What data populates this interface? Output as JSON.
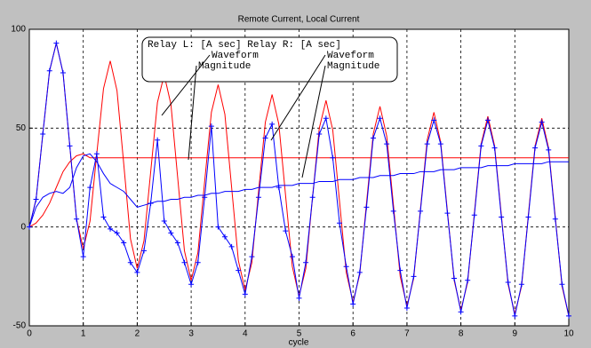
{
  "chart_data": {
    "type": "line",
    "title": "Remote Current, Local Current",
    "x_label": "cycle",
    "legend_title": "Relay L: [A sec] Relay R: [A sec]",
    "xlim": [
      0,
      10
    ],
    "xticks": [
      0,
      1,
      2,
      3,
      4,
      5,
      6,
      7,
      8,
      9,
      10
    ],
    "ylim": [
      -50,
      100
    ],
    "yticks": [
      -50,
      0,
      50,
      100
    ],
    "grid": true,
    "x": [
      0,
      0.125,
      0.25,
      0.375,
      0.5,
      0.625,
      0.75,
      0.875,
      1,
      1.125,
      1.25,
      1.375,
      1.5,
      1.625,
      1.75,
      1.875,
      2,
      2.125,
      2.25,
      2.375,
      2.5,
      2.625,
      2.75,
      2.875,
      3,
      3.125,
      3.25,
      3.375,
      3.5,
      3.625,
      3.75,
      3.875,
      4,
      4.125,
      4.25,
      4.375,
      4.5,
      4.625,
      4.75,
      4.875,
      5,
      5.125,
      5.25,
      5.375,
      5.5,
      5.625,
      5.75,
      5.875,
      6,
      6.125,
      6.25,
      6.375,
      6.5,
      6.625,
      6.75,
      6.875,
      7,
      7.125,
      7.25,
      7.375,
      7.5,
      7.625,
      7.75,
      7.875,
      8,
      8.125,
      8.25,
      8.375,
      8.5,
      8.625,
      8.75,
      8.875,
      9,
      9.125,
      9.25,
      9.375,
      9.5,
      9.625,
      9.75,
      9.875,
      10
    ],
    "series": [
      {
        "name": "Waveform",
        "color": "#ff0000",
        "values": [
          0,
          14,
          47,
          79,
          93,
          78,
          41,
          4,
          -11,
          3,
          37,
          70,
          84,
          69,
          32,
          -6,
          -21,
          -7,
          28,
          63,
          77,
          62,
          25,
          -12,
          -27,
          -13,
          23,
          58,
          72,
          57,
          20,
          -17,
          -32,
          -18,
          18,
          53,
          67,
          52,
          16,
          -20,
          -35,
          -21,
          15,
          50,
          64,
          49,
          13,
          -23,
          -38,
          -24,
          12,
          47,
          61,
          46,
          11,
          -25,
          -40,
          -26,
          9,
          44,
          58,
          43,
          8,
          -27,
          -42,
          -28,
          7,
          42,
          56,
          41,
          6,
          -29,
          -44,
          -30,
          6,
          41,
          55,
          40,
          5,
          -30,
          -45
        ]
      },
      {
        "name": "Magnitude",
        "color": "#ff0000",
        "values": [
          0,
          2,
          6,
          12,
          20,
          28,
          33,
          36,
          37,
          35,
          35,
          35,
          35,
          35,
          35,
          35,
          35,
          35,
          35,
          35,
          35,
          35,
          35,
          35,
          35,
          35,
          35,
          35,
          35,
          35,
          35,
          35,
          35,
          35,
          35,
          35,
          35,
          35,
          35,
          35,
          35,
          35,
          35,
          35,
          35,
          35,
          35,
          35,
          35,
          35,
          35,
          35,
          35,
          35,
          35,
          35,
          35,
          35,
          35,
          35,
          35,
          35,
          35,
          35,
          35,
          35,
          35,
          35,
          35,
          35,
          35,
          35,
          35,
          35,
          35,
          35,
          35,
          35,
          35,
          35,
          35
        ]
      },
      {
        "name": "Waveform",
        "color": "#0000ff",
        "marker": "plus",
        "values": [
          0,
          14,
          47,
          79,
          93,
          78,
          41,
          4,
          -15,
          20,
          37,
          5,
          -1,
          -3,
          -8,
          -18,
          -23,
          -12,
          12,
          44,
          3,
          -3,
          -8,
          -18,
          -29,
          -18,
          15,
          51,
          0,
          -5,
          -10,
          -22,
          -34,
          -15,
          15,
          45,
          52,
          20,
          -2,
          -15,
          -36,
          -18,
          15,
          47,
          55,
          35,
          2,
          -20,
          -39,
          -23,
          10,
          45,
          55,
          42,
          8,
          -22,
          -41,
          -25,
          8,
          42,
          54,
          42,
          7,
          -26,
          -43,
          -27,
          6,
          41,
          54,
          40,
          5,
          -28,
          -45,
          -29,
          5,
          40,
          53,
          39,
          4,
          -29,
          -45
        ]
      },
      {
        "name": "Magnitude",
        "color": "#0000ff",
        "values": [
          0,
          10,
          15,
          17,
          18,
          17,
          20,
          30,
          36,
          37,
          33,
          27,
          22,
          20,
          18,
          14,
          10,
          11,
          12,
          13,
          13,
          14,
          14,
          15,
          15,
          16,
          16,
          17,
          17,
          18,
          18,
          18,
          19,
          19,
          20,
          20,
          20,
          21,
          21,
          21,
          22,
          22,
          22,
          23,
          23,
          23,
          24,
          24,
          24,
          25,
          25,
          25,
          26,
          26,
          26,
          27,
          27,
          27,
          28,
          28,
          28,
          29,
          29,
          29,
          30,
          30,
          30,
          30,
          31,
          31,
          31,
          31,
          32,
          32,
          32,
          32,
          32,
          33,
          33,
          33,
          33
        ]
      }
    ]
  }
}
